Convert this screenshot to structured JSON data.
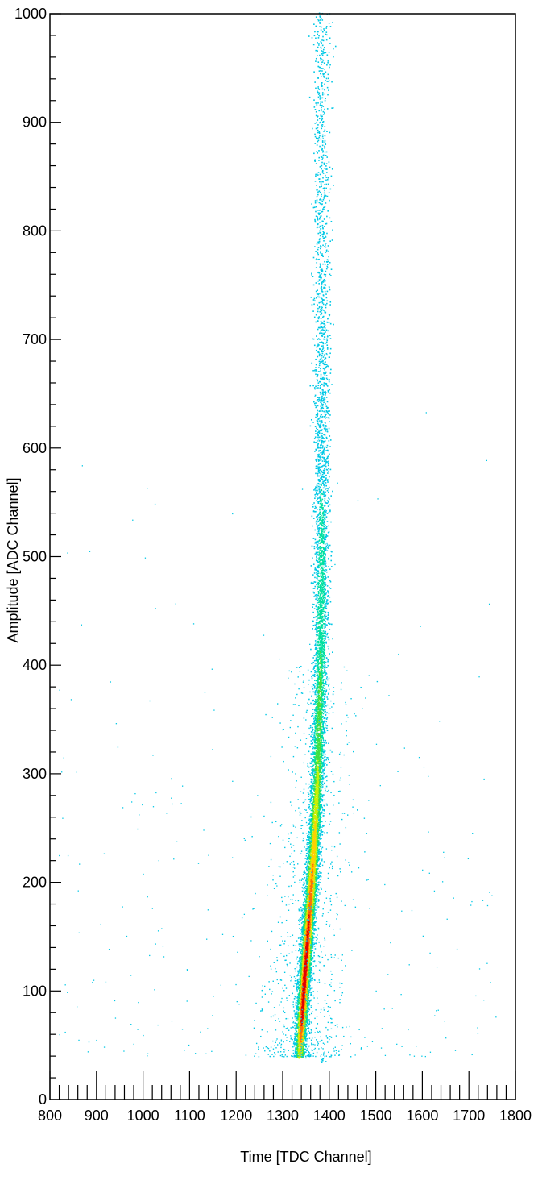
{
  "chart_data": {
    "type": "heatmap",
    "title": "",
    "xlabel": "Time [TDC Channel]",
    "ylabel": "Amplitude [ADC Channel]",
    "xlim": [
      800,
      1800
    ],
    "ylim": [
      0,
      1000
    ],
    "x_ticks": [
      800,
      900,
      1000,
      1100,
      1200,
      1300,
      1400,
      1500,
      1600,
      1700,
      1800
    ],
    "y_ticks": [
      0,
      100,
      200,
      300,
      400,
      500,
      600,
      700,
      800,
      900,
      1000
    ],
    "x_tick_labels": [
      "800",
      "900",
      "1000",
      "1100",
      "1200",
      "1300",
      "1400",
      "1500",
      "1600",
      "1700",
      "1800"
    ],
    "y_tick_labels": [
      "0",
      "100",
      "200",
      "300",
      "400",
      "500",
      "600",
      "700",
      "800",
      "900",
      "1000"
    ],
    "grid": false,
    "legend": "none",
    "colormap": [
      "#00c8e6",
      "#00e0a0",
      "#40e040",
      "#c8f000",
      "#ffd000",
      "#ff7000",
      "#e00000"
    ],
    "density_ridge": {
      "description_units": "data units",
      "points": [
        {
          "amplitude": 40,
          "time": 1336,
          "relative_density": 0.55
        },
        {
          "amplitude": 60,
          "time": 1338,
          "relative_density": 0.8
        },
        {
          "amplitude": 80,
          "time": 1341,
          "relative_density": 0.95
        },
        {
          "amplitude": 100,
          "time": 1344,
          "relative_density": 1.0
        },
        {
          "amplitude": 130,
          "time": 1349,
          "relative_density": 0.97
        },
        {
          "amplitude": 160,
          "time": 1354,
          "relative_density": 0.9
        },
        {
          "amplitude": 200,
          "time": 1361,
          "relative_density": 0.78
        },
        {
          "amplitude": 250,
          "time": 1368,
          "relative_density": 0.6
        },
        {
          "amplitude": 300,
          "time": 1374,
          "relative_density": 0.45
        },
        {
          "amplitude": 400,
          "time": 1380,
          "relative_density": 0.3
        },
        {
          "amplitude": 500,
          "time": 1382,
          "relative_density": 0.2
        },
        {
          "amplitude": 600,
          "time": 1383,
          "relative_density": 0.12
        },
        {
          "amplitude": 700,
          "time": 1383,
          "relative_density": 0.07
        },
        {
          "amplitude": 800,
          "time": 1383,
          "relative_density": 0.04
        },
        {
          "amplitude": 1000,
          "time": 1383,
          "relative_density": 0.02
        }
      ]
    }
  }
}
